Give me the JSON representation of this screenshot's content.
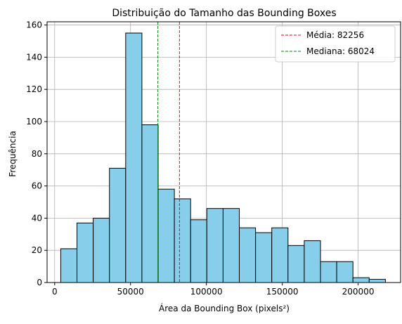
{
  "chart_data": {
    "type": "histogram",
    "title": "Distribuição do Tamanho das Bounding Boxes",
    "xlabel": "Área da Bounding Box (pixels²)",
    "ylabel": "Frequência",
    "xlim": [
      -5000,
      228000
    ],
    "ylim": [
      0,
      162
    ],
    "x_ticks": [
      0,
      50000,
      100000,
      150000,
      200000
    ],
    "y_ticks": [
      0,
      20,
      40,
      60,
      80,
      100,
      120,
      140,
      160
    ],
    "grid": true,
    "legend_position": "top-right",
    "bins": {
      "start": 4000,
      "width": 10700,
      "counts": [
        21,
        37,
        40,
        71,
        155,
        98,
        58,
        52,
        39,
        46,
        46,
        34,
        31,
        34,
        23,
        26,
        13,
        13,
        3,
        2
      ]
    },
    "bar_color": "#87ceeb",
    "bar_edge_color": "#000000",
    "reference_lines": [
      {
        "label": "Média: 82256",
        "x": 82256,
        "color": "#ff0000"
      },
      {
        "label": "Mediana: 68024",
        "x": 68024,
        "color": "#008000"
      }
    ]
  }
}
